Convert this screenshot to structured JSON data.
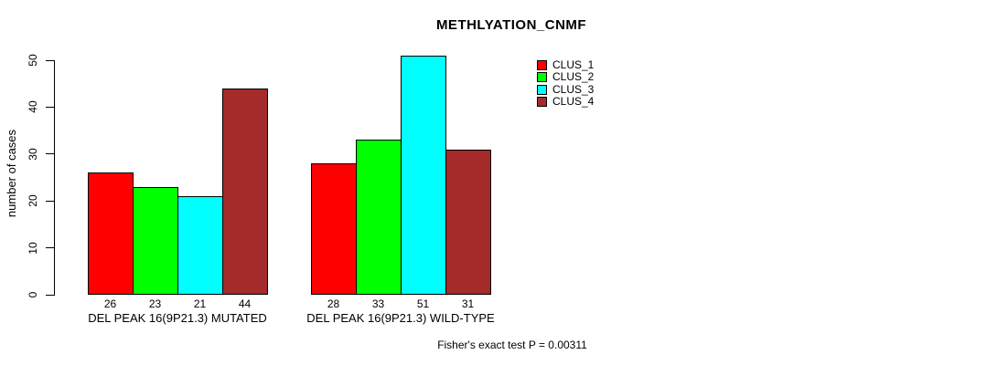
{
  "chart_data": {
    "type": "bar",
    "title": "METHLYATION_CNMF",
    "xlabel": "",
    "ylabel": "number of cases",
    "ylim": [
      0,
      50
    ],
    "yticks": [
      0,
      10,
      20,
      30,
      40,
      50
    ],
    "grid": false,
    "legend_position": "top-right",
    "categories": [
      "DEL PEAK 16(9P21.3) MUTATED",
      "DEL PEAK 16(9P21.3) WILD-TYPE"
    ],
    "series": [
      {
        "name": "CLUS_1",
        "color": "#ff0000",
        "values": [
          26,
          28
        ]
      },
      {
        "name": "CLUS_2",
        "color": "#00ff00",
        "values": [
          23,
          33
        ]
      },
      {
        "name": "CLUS_3",
        "color": "#00ffff",
        "values": [
          21,
          51
        ]
      },
      {
        "name": "CLUS_4",
        "color": "#a52a2a",
        "values": [
          44,
          31
        ]
      }
    ],
    "value_labels_shown": true,
    "bar_border_color": "#000000",
    "annotation": "Fisher's exact test P = 0.00311"
  }
}
